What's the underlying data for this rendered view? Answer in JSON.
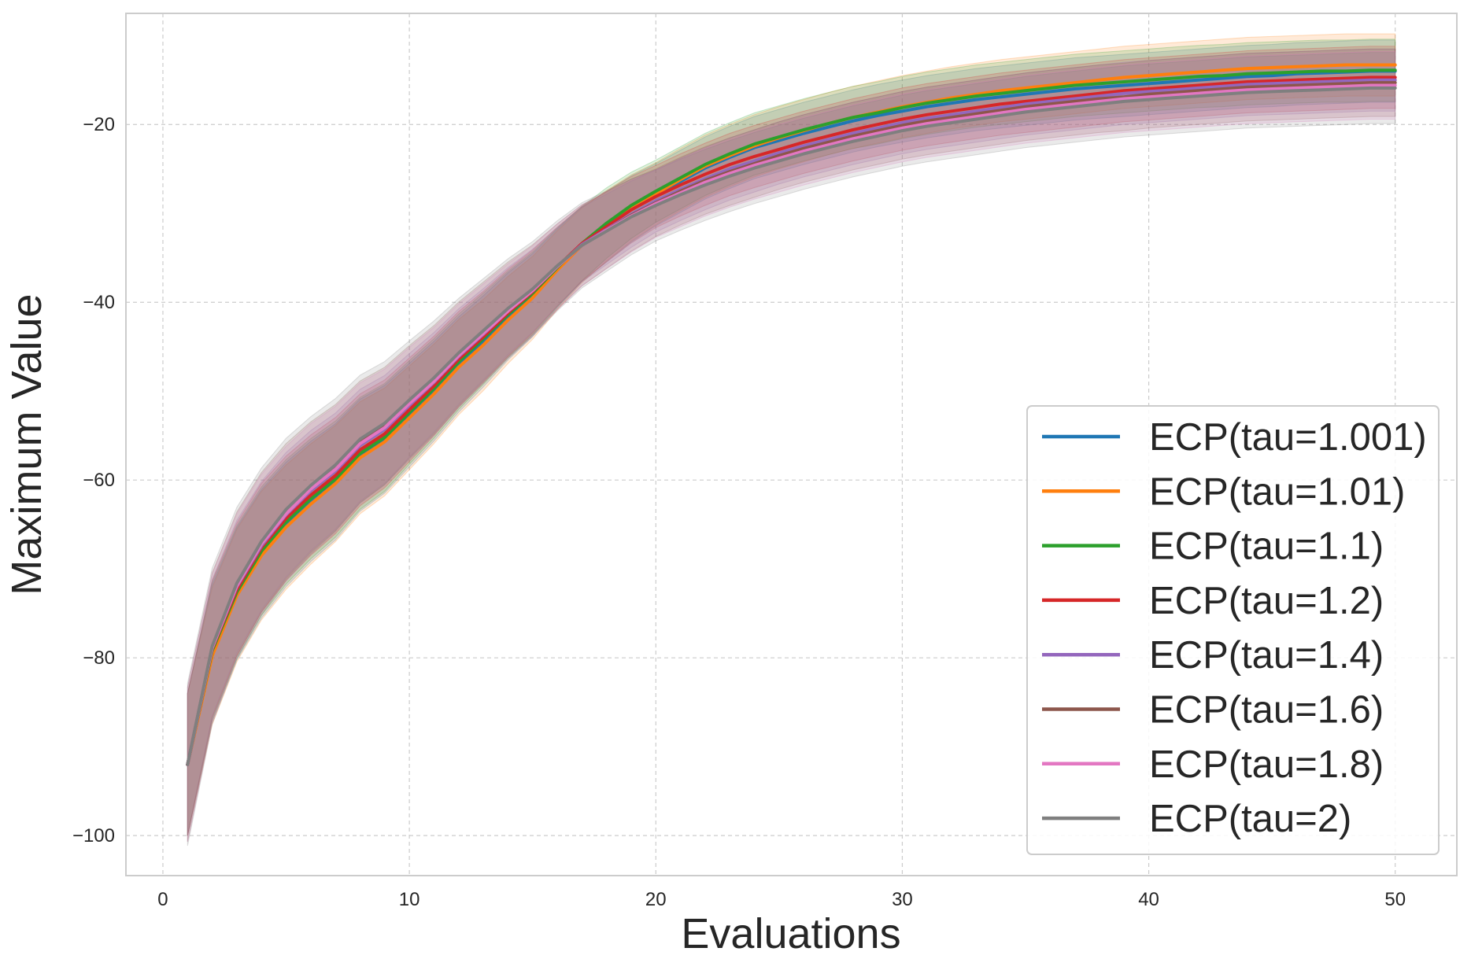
{
  "chart_data": {
    "type": "line",
    "title": "",
    "xlabel": "Evaluations",
    "ylabel": "Maximum Value",
    "xlim": [
      -1.5,
      52.5
    ],
    "ylim": [
      -104.5,
      -7.5
    ],
    "xticks": [
      0,
      10,
      20,
      30,
      40,
      50
    ],
    "yticks": [
      -100,
      -80,
      -60,
      -40,
      -20
    ],
    "grid": true,
    "legend_position": "lower-right",
    "x": [
      1,
      2,
      3,
      4,
      5,
      6,
      7,
      8,
      9,
      10,
      11,
      12,
      13,
      14,
      15,
      16,
      17,
      18,
      19,
      20,
      21,
      22,
      23,
      24,
      25,
      26,
      27,
      28,
      29,
      30,
      31,
      32,
      33,
      34,
      35,
      36,
      37,
      38,
      39,
      40,
      41,
      42,
      43,
      44,
      45,
      46,
      47,
      48,
      49,
      50
    ],
    "series": [
      {
        "name": "ECP(tau=1.001)",
        "color": "#1f77b4",
        "values": [
          -92.0,
          -79.5,
          -72.8,
          -68.3,
          -65.0,
          -62.4,
          -60.2,
          -57.2,
          -55.4,
          -52.7,
          -50.0,
          -47.0,
          -44.4,
          -41.6,
          -39.2,
          -36.2,
          -33.5,
          -31.5,
          -29.5,
          -27.9,
          -26.4,
          -24.9,
          -23.7,
          -22.6,
          -21.8,
          -21.0,
          -20.3,
          -19.6,
          -19.0,
          -18.5,
          -18.0,
          -17.6,
          -17.2,
          -16.9,
          -16.6,
          -16.3,
          -16.0,
          -15.8,
          -15.6,
          -15.4,
          -15.2,
          -15.0,
          -14.8,
          -14.6,
          -14.5,
          -14.3,
          -14.2,
          -14.1,
          -14.0,
          -14.0
        ],
        "band": 3.5
      },
      {
        "name": "ECP(tau=1.01)",
        "color": "#ff7f0e",
        "values": [
          -92.0,
          -79.8,
          -73.0,
          -68.5,
          -65.3,
          -62.7,
          -60.4,
          -57.5,
          -55.7,
          -53.0,
          -50.3,
          -47.3,
          -44.8,
          -42.0,
          -39.5,
          -36.4,
          -33.6,
          -31.4,
          -29.4,
          -27.8,
          -26.2,
          -24.7,
          -23.5,
          -22.4,
          -21.5,
          -20.7,
          -19.9,
          -19.2,
          -18.6,
          -18.0,
          -17.5,
          -17.0,
          -16.6,
          -16.2,
          -15.9,
          -15.6,
          -15.3,
          -15.0,
          -14.7,
          -14.5,
          -14.3,
          -14.1,
          -13.9,
          -13.7,
          -13.6,
          -13.5,
          -13.4,
          -13.3,
          -13.3,
          -13.3
        ],
        "band": 3.5
      },
      {
        "name": "ECP(tau=1.1)",
        "color": "#2ca02c",
        "values": [
          -92.0,
          -79.2,
          -72.6,
          -68.0,
          -64.7,
          -62.1,
          -59.9,
          -57.0,
          -55.2,
          -52.4,
          -49.7,
          -46.7,
          -44.1,
          -41.4,
          -39.0,
          -36.1,
          -33.4,
          -31.1,
          -29.1,
          -27.5,
          -26.0,
          -24.5,
          -23.3,
          -22.2,
          -21.4,
          -20.6,
          -19.9,
          -19.2,
          -18.7,
          -18.1,
          -17.6,
          -17.2,
          -16.8,
          -16.5,
          -16.2,
          -15.9,
          -15.6,
          -15.4,
          -15.2,
          -15.0,
          -14.8,
          -14.6,
          -14.5,
          -14.3,
          -14.2,
          -14.1,
          -14.0,
          -14.0,
          -13.9,
          -13.9
        ],
        "band": 3.5
      },
      {
        "name": "ECP(tau=1.2)",
        "color": "#d62728",
        "values": [
          -92.0,
          -79.0,
          -72.3,
          -67.6,
          -64.3,
          -61.7,
          -59.5,
          -56.6,
          -54.8,
          -52.1,
          -49.4,
          -46.4,
          -43.9,
          -41.2,
          -38.8,
          -36.0,
          -33.4,
          -31.5,
          -29.6,
          -28.1,
          -26.8,
          -25.6,
          -24.5,
          -23.6,
          -22.8,
          -22.0,
          -21.3,
          -20.6,
          -20.0,
          -19.4,
          -18.9,
          -18.5,
          -18.1,
          -17.7,
          -17.4,
          -17.1,
          -16.8,
          -16.5,
          -16.2,
          -16.0,
          -15.8,
          -15.6,
          -15.4,
          -15.2,
          -15.1,
          -15.0,
          -14.9,
          -14.8,
          -14.7,
          -14.7
        ],
        "band": 3.5
      },
      {
        "name": "ECP(tau=1.4)",
        "color": "#9467bd",
        "values": [
          -92.0,
          -78.9,
          -72.0,
          -67.4,
          -63.9,
          -61.2,
          -59.0,
          -56.1,
          -54.3,
          -51.6,
          -49.0,
          -46.1,
          -43.6,
          -41.0,
          -38.7,
          -36.0,
          -33.5,
          -31.8,
          -30.1,
          -28.6,
          -27.3,
          -26.1,
          -25.0,
          -24.1,
          -23.2,
          -22.4,
          -21.7,
          -21.0,
          -20.4,
          -19.8,
          -19.3,
          -18.9,
          -18.5,
          -18.1,
          -17.7,
          -17.4,
          -17.1,
          -16.8,
          -16.5,
          -16.3,
          -16.1,
          -15.9,
          -15.7,
          -15.5,
          -15.4,
          -15.3,
          -15.2,
          -15.1,
          -15.0,
          -15.0
        ],
        "band": 3.5
      },
      {
        "name": "ECP(tau=1.6)",
        "color": "#8c564b",
        "values": [
          -92.0,
          -78.8,
          -71.7,
          -67.0,
          -63.5,
          -60.8,
          -58.6,
          -55.7,
          -53.9,
          -51.2,
          -48.7,
          -45.8,
          -43.3,
          -40.8,
          -38.6,
          -36.0,
          -33.6,
          -31.9,
          -30.2,
          -28.8,
          -27.5,
          -26.3,
          -25.3,
          -24.4,
          -23.5,
          -22.7,
          -22.0,
          -21.3,
          -20.7,
          -20.1,
          -19.6,
          -19.2,
          -18.8,
          -18.4,
          -18.0,
          -17.7,
          -17.4,
          -17.1,
          -16.9,
          -16.6,
          -16.4,
          -16.2,
          -16.0,
          -15.8,
          -15.7,
          -15.6,
          -15.5,
          -15.4,
          -15.3,
          -15.3
        ],
        "band": 3.8
      },
      {
        "name": "ECP(tau=1.8)",
        "color": "#e377c2",
        "values": [
          -92.0,
          -78.9,
          -71.9,
          -67.2,
          -63.8,
          -61.0,
          -58.8,
          -55.9,
          -54.1,
          -51.4,
          -48.9,
          -46.0,
          -43.5,
          -41.0,
          -38.7,
          -36.0,
          -33.6,
          -31.9,
          -30.3,
          -28.9,
          -27.7,
          -26.5,
          -25.5,
          -24.6,
          -23.8,
          -23.0,
          -22.3,
          -21.6,
          -21.0,
          -20.4,
          -19.9,
          -19.5,
          -19.1,
          -18.7,
          -18.3,
          -18.0,
          -17.7,
          -17.4,
          -17.1,
          -16.9,
          -16.7,
          -16.5,
          -16.3,
          -16.1,
          -16.0,
          -15.9,
          -15.8,
          -15.7,
          -15.6,
          -15.6
        ],
        "band": 3.8
      },
      {
        "name": "ECP(tau=2)",
        "color": "#7f7f7f",
        "values": [
          -92.0,
          -78.7,
          -71.6,
          -66.9,
          -63.3,
          -60.6,
          -58.3,
          -55.4,
          -53.6,
          -51.0,
          -48.5,
          -45.7,
          -43.2,
          -40.7,
          -38.5,
          -35.9,
          -33.6,
          -32.0,
          -30.4,
          -29.1,
          -27.9,
          -26.8,
          -25.8,
          -24.9,
          -24.1,
          -23.3,
          -22.6,
          -21.9,
          -21.3,
          -20.7,
          -20.2,
          -19.8,
          -19.4,
          -19.0,
          -18.6,
          -18.3,
          -18.0,
          -17.7,
          -17.4,
          -17.2,
          -17.0,
          -16.8,
          -16.6,
          -16.4,
          -16.3,
          -16.2,
          -16.1,
          -16.0,
          -15.9,
          -15.9
        ],
        "band": 4.0
      }
    ]
  }
}
